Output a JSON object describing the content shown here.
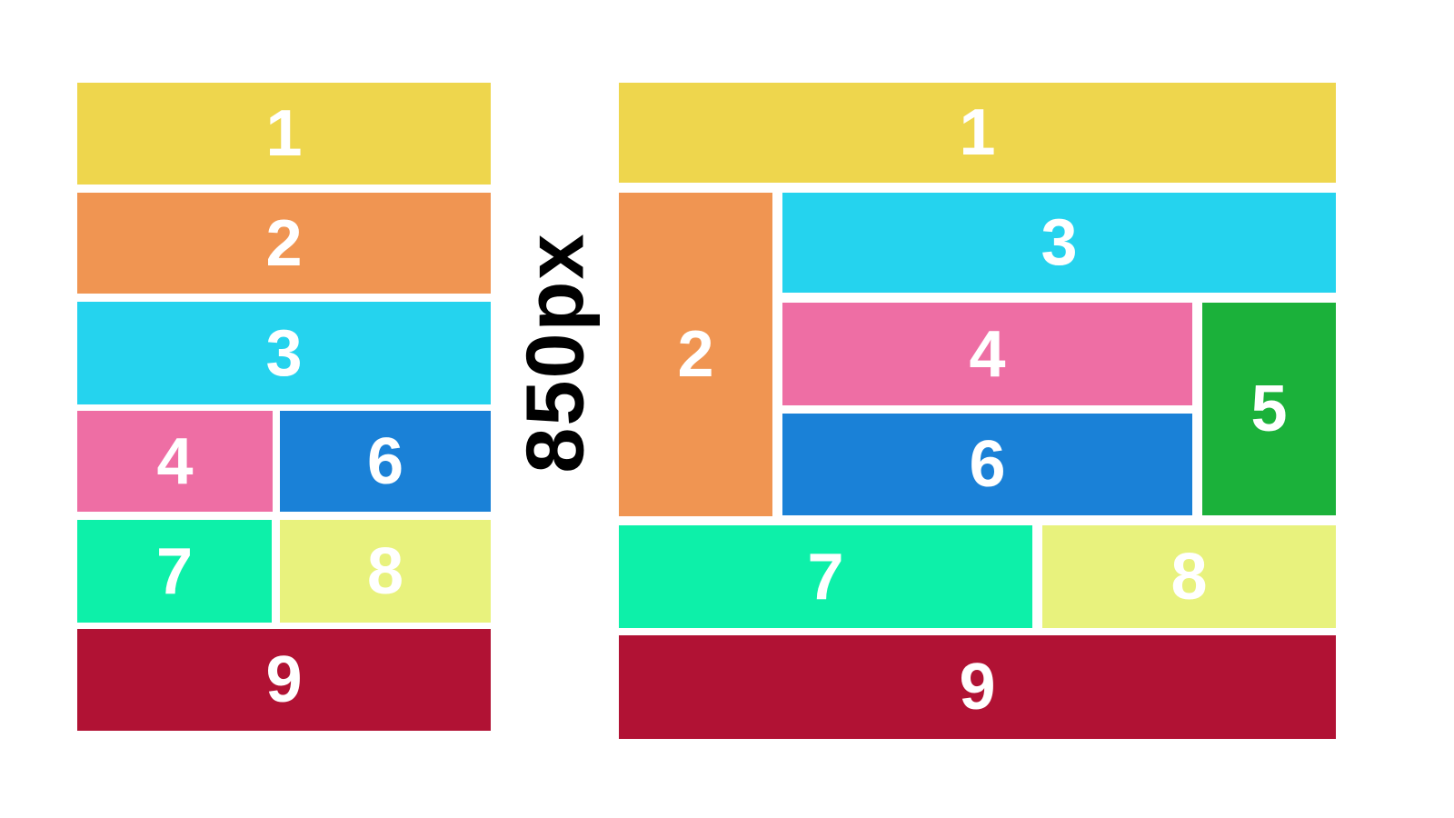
{
  "divider": {
    "label": "850px",
    "color": "#000000"
  },
  "blocks": {
    "1": {
      "label": "1",
      "color": "#eed64d"
    },
    "2": {
      "label": "2",
      "color": "#f09552"
    },
    "3": {
      "label": "3",
      "color": "#25d3ee"
    },
    "4": {
      "label": "4",
      "color": "#ee6ea4"
    },
    "5": {
      "label": "5",
      "color": "#1bb13a"
    },
    "6": {
      "label": "6",
      "color": "#1a81d7"
    },
    "7": {
      "label": "7",
      "color": "#0df0a9"
    },
    "8": {
      "label": "8",
      "color": "#e8f27d"
    },
    "9": {
      "label": "9",
      "color": "#b11234"
    }
  },
  "label_text_color": "#ffffff",
  "narrow_layout": {
    "blocks_shown": [
      "1",
      "2",
      "3",
      "4",
      "6",
      "7",
      "8",
      "9"
    ]
  },
  "wide_layout": {
    "blocks_shown": [
      "1",
      "2",
      "3",
      "4",
      "5",
      "6",
      "7",
      "8",
      "9"
    ]
  }
}
